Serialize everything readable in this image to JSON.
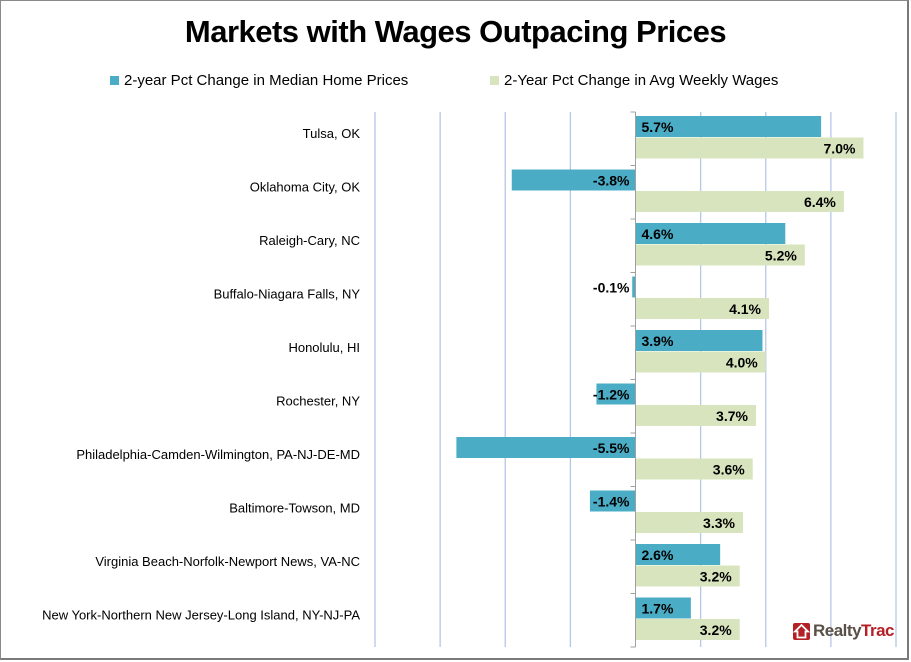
{
  "chart_data": {
    "type": "bar",
    "orientation": "horizontal",
    "title": "Markets with Wages Outpacing Prices",
    "xlabel": "",
    "ylabel": "",
    "xlim": [
      -8,
      8
    ],
    "grid": true,
    "legend_position": "top",
    "categories": [
      "Tulsa, OK",
      "Oklahoma City, OK",
      "Raleigh-Cary, NC",
      "Buffalo-Niagara Falls, NY",
      "Honolulu, HI",
      "Rochester, NY",
      "Philadelphia-Camden-Wilmington, PA-NJ-DE-MD",
      "Baltimore-Towson, MD",
      "Virginia Beach-Norfolk-Newport News, VA-NC",
      "New York-Northern New Jersey-Long Island, NY-NJ-PA"
    ],
    "series": [
      {
        "name": "2-year Pct Change in Median Home Prices",
        "color": "#4bacc6",
        "values": [
          5.7,
          -3.8,
          4.6,
          -0.1,
          3.9,
          -1.2,
          -5.5,
          -1.4,
          2.6,
          1.7
        ],
        "labels": [
          "5.7%",
          "-3.8%",
          "4.6%",
          "-0.1%",
          "3.9%",
          "-1.2%",
          "-5.5%",
          "-1.4%",
          "2.6%",
          "1.7%"
        ]
      },
      {
        "name": "2-Year Pct Change in Avg Weekly Wages",
        "color": "#d7e4bd",
        "values": [
          7.0,
          6.4,
          5.2,
          4.1,
          4.0,
          3.7,
          3.6,
          3.3,
          3.2,
          3.2
        ],
        "labels": [
          "7.0%",
          "6.4%",
          "5.2%",
          "4.1%",
          "4.0%",
          "3.7%",
          "3.6%",
          "3.3%",
          "3.2%",
          "3.2%"
        ]
      }
    ],
    "gridline_color": "#b4c7e7"
  },
  "logo": {
    "part1": "Realty",
    "part2": "Trac",
    "icon": "house-icon"
  }
}
